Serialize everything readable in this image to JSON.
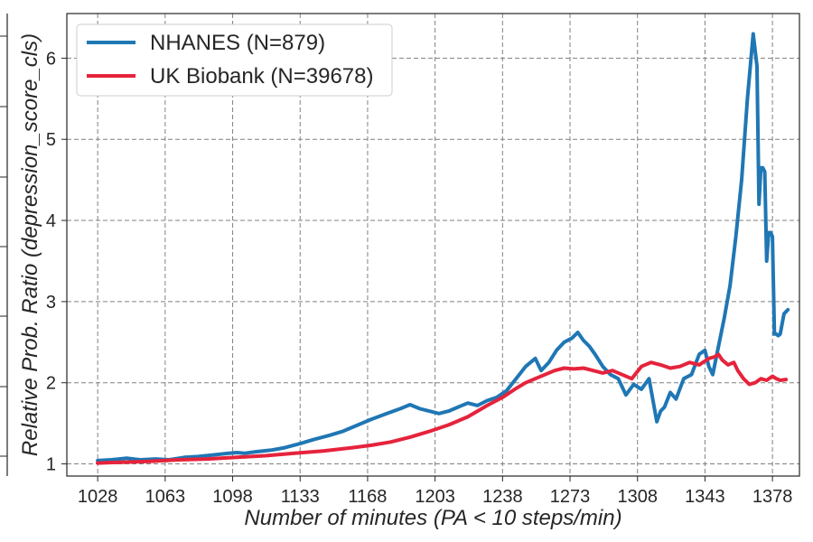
{
  "chart_data": {
    "type": "line",
    "title": "",
    "xlabel": "Number of minutes (PA < 10 steps/min)",
    "ylabel": "Relative Prob. Ratio (depression_score_cls)",
    "xlim": [
      1012,
      1392
    ],
    "ylim": [
      0.85,
      6.55
    ],
    "xticks": [
      1028,
      1063,
      1098,
      1133,
      1168,
      1203,
      1238,
      1273,
      1308,
      1343,
      1378
    ],
    "yticks": [
      1,
      2,
      3,
      4,
      5,
      6
    ],
    "grid": true,
    "legend_position": "top-left",
    "series": [
      {
        "name": "NHANES (N=879)",
        "color": "#1f77b4",
        "x": [
          1028,
          1035,
          1043,
          1050,
          1058,
          1065,
          1073,
          1080,
          1088,
          1096,
          1100,
          1104,
          1110,
          1118,
          1125,
          1133,
          1140,
          1148,
          1155,
          1163,
          1170,
          1178,
          1185,
          1190,
          1195,
          1200,
          1205,
          1210,
          1215,
          1220,
          1225,
          1230,
          1235,
          1240,
          1245,
          1250,
          1255,
          1258,
          1262,
          1266,
          1270,
          1274,
          1277,
          1280,
          1283,
          1286,
          1290,
          1294,
          1298,
          1302,
          1306,
          1310,
          1314,
          1318,
          1320,
          1322,
          1325,
          1328,
          1332,
          1336,
          1340,
          1343,
          1345,
          1347,
          1350,
          1353,
          1356,
          1359,
          1362,
          1365,
          1368,
          1370,
          1371,
          1372,
          1373,
          1374,
          1375,
          1376,
          1377,
          1378,
          1379,
          1380,
          1381,
          1382,
          1384,
          1386
        ],
        "values": [
          1.04,
          1.05,
          1.07,
          1.05,
          1.06,
          1.05,
          1.08,
          1.09,
          1.11,
          1.13,
          1.14,
          1.13,
          1.15,
          1.17,
          1.2,
          1.25,
          1.3,
          1.35,
          1.4,
          1.48,
          1.55,
          1.62,
          1.68,
          1.73,
          1.68,
          1.65,
          1.62,
          1.65,
          1.7,
          1.75,
          1.72,
          1.78,
          1.82,
          1.9,
          2.05,
          2.2,
          2.3,
          2.15,
          2.25,
          2.4,
          2.5,
          2.55,
          2.62,
          2.52,
          2.45,
          2.35,
          2.2,
          2.1,
          2.05,
          1.85,
          1.98,
          1.92,
          2.05,
          1.52,
          1.65,
          1.7,
          1.88,
          1.8,
          2.05,
          2.1,
          2.35,
          2.4,
          2.2,
          2.1,
          2.45,
          2.8,
          3.2,
          3.8,
          4.5,
          5.5,
          6.3,
          5.9,
          4.2,
          4.65,
          4.65,
          4.6,
          3.5,
          3.85,
          3.85,
          3.8,
          2.6,
          2.6,
          2.58,
          2.6,
          2.85,
          2.9
        ]
      },
      {
        "name": "UK Biobank (N=39678)",
        "color": "#e6233c",
        "x": [
          1028,
          1040,
          1055,
          1070,
          1085,
          1100,
          1115,
          1130,
          1145,
          1160,
          1170,
          1180,
          1190,
          1200,
          1210,
          1220,
          1230,
          1238,
          1245,
          1250,
          1255,
          1260,
          1265,
          1270,
          1275,
          1280,
          1285,
          1290,
          1295,
          1300,
          1305,
          1310,
          1315,
          1320,
          1325,
          1330,
          1335,
          1340,
          1345,
          1348,
          1350,
          1352,
          1355,
          1358,
          1360,
          1363,
          1366,
          1369,
          1372,
          1375,
          1378,
          1380,
          1382,
          1385
        ],
        "values": [
          1.01,
          1.02,
          1.03,
          1.05,
          1.06,
          1.08,
          1.1,
          1.13,
          1.16,
          1.2,
          1.23,
          1.27,
          1.33,
          1.4,
          1.48,
          1.58,
          1.72,
          1.82,
          1.93,
          2.0,
          2.05,
          2.1,
          2.15,
          2.18,
          2.17,
          2.18,
          2.15,
          2.12,
          2.15,
          2.1,
          2.05,
          2.2,
          2.25,
          2.22,
          2.18,
          2.2,
          2.25,
          2.22,
          2.3,
          2.32,
          2.35,
          2.28,
          2.22,
          2.25,
          2.15,
          2.05,
          1.98,
          2.0,
          2.05,
          2.03,
          2.08,
          2.05,
          2.03,
          2.04
        ]
      }
    ]
  }
}
